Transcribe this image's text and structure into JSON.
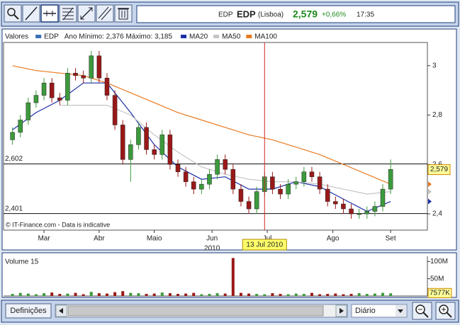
{
  "quote": {
    "symbol": "EDP",
    "name": "EDP",
    "exchange": "(Lisboa)",
    "price": "2,579",
    "change": "+0,66%",
    "time": "17:35"
  },
  "controls": {
    "settings_button": "Definições",
    "interval": "Diário"
  },
  "chart_data": [
    {
      "type": "candlestick",
      "legend_title": "Valores",
      "range_text": "Ano Mínimo: 2,376 Máximo: 3,185",
      "x": [
        1,
        4,
        7,
        10,
        13,
        16,
        19,
        22,
        25,
        28,
        31,
        34,
        37,
        40,
        43,
        46,
        49,
        52,
        55,
        58,
        61,
        64,
        67,
        70,
        73,
        76,
        79,
        82,
        85,
        88,
        91,
        94,
        97,
        100,
        103,
        106,
        109,
        112,
        115,
        118,
        121,
        124,
        127,
        130,
        133,
        136,
        139,
        142,
        145
      ],
      "series": [
        {
          "name": "EDP",
          "color": "#3a6fb5",
          "up_color": "#3c9a3c",
          "down_color": "#9a1818",
          "open": [
            2.7,
            2.73,
            2.78,
            2.85,
            2.88,
            2.93,
            2.87,
            2.86,
            2.97,
            2.96,
            2.95,
            3.04,
            2.95,
            2.88,
            2.76,
            2.62,
            2.68,
            2.75,
            2.66,
            2.64,
            2.72,
            2.6,
            2.57,
            2.53,
            2.5,
            2.52,
            2.56,
            2.62,
            2.58,
            2.5,
            2.45,
            2.42,
            2.49,
            2.55,
            2.5,
            2.48,
            2.52,
            2.53,
            2.57,
            2.55,
            2.5,
            2.45,
            2.44,
            2.42,
            2.4,
            2.4,
            2.41,
            2.43,
            2.5
          ],
          "high": [
            2.75,
            2.8,
            2.87,
            2.9,
            2.95,
            2.95,
            2.89,
            2.99,
            2.99,
            2.98,
            3.06,
            3.06,
            2.97,
            2.9,
            2.78,
            2.7,
            2.77,
            2.77,
            2.68,
            2.74,
            2.74,
            2.62,
            2.59,
            2.55,
            2.54,
            2.58,
            2.64,
            2.64,
            2.6,
            2.52,
            2.47,
            2.51,
            2.57,
            2.57,
            2.52,
            2.54,
            2.55,
            2.59,
            2.59,
            2.57,
            2.52,
            2.47,
            2.46,
            2.44,
            2.42,
            2.43,
            2.45,
            2.52,
            2.62
          ],
          "low": [
            2.68,
            2.71,
            2.76,
            2.83,
            2.86,
            2.85,
            2.84,
            2.84,
            2.94,
            2.93,
            2.93,
            2.93,
            2.86,
            2.74,
            2.6,
            2.53,
            2.66,
            2.64,
            2.62,
            2.62,
            2.58,
            2.55,
            2.51,
            2.48,
            2.48,
            2.5,
            2.54,
            2.56,
            2.48,
            2.43,
            2.4,
            2.4,
            2.47,
            2.48,
            2.46,
            2.46,
            2.5,
            2.51,
            2.53,
            2.48,
            2.43,
            2.42,
            2.4,
            2.38,
            2.38,
            2.38,
            2.39,
            2.41,
            2.48
          ],
          "close": [
            2.73,
            2.78,
            2.85,
            2.88,
            2.93,
            2.87,
            2.86,
            2.97,
            2.96,
            2.95,
            3.04,
            2.95,
            2.88,
            2.76,
            2.62,
            2.68,
            2.75,
            2.66,
            2.64,
            2.72,
            2.6,
            2.57,
            2.53,
            2.5,
            2.52,
            2.56,
            2.62,
            2.58,
            2.5,
            2.45,
            2.42,
            2.49,
            2.55,
            2.5,
            2.48,
            2.52,
            2.53,
            2.57,
            2.55,
            2.5,
            2.45,
            2.44,
            2.42,
            2.4,
            2.4,
            2.41,
            2.43,
            2.5,
            2.58
          ]
        }
      ],
      "ma_x": [
        1,
        10,
        19,
        28,
        37,
        46,
        55,
        64,
        73,
        82,
        91,
        100,
        109,
        118,
        127,
        136,
        145
      ],
      "lines": [
        {
          "name": "MA20",
          "color": "#1c2fa8",
          "values": [
            2.74,
            2.81,
            2.86,
            2.93,
            2.93,
            2.81,
            2.68,
            2.59,
            2.54,
            2.55,
            2.5,
            2.5,
            2.53,
            2.51,
            2.46,
            2.41,
            2.45
          ]
        },
        {
          "name": "MA50",
          "color": "#c4c4c4",
          "values": [
            null,
            null,
            2.84,
            2.84,
            2.84,
            2.8,
            2.72,
            2.65,
            2.59,
            2.56,
            2.54,
            2.53,
            2.53,
            2.52,
            2.5,
            2.48,
            2.49
          ]
        },
        {
          "name": "MA100",
          "color": "#e87a22",
          "values": [
            3.0,
            2.98,
            2.97,
            2.96,
            2.93,
            2.89,
            2.85,
            2.81,
            2.78,
            2.75,
            2.72,
            2.7,
            2.67,
            2.64,
            2.6,
            2.56,
            2.52
          ]
        }
      ],
      "xlim": [
        -2.4,
        159
      ],
      "xticks": [
        {
          "value": 13,
          "label": "Mar"
        },
        {
          "value": 34,
          "label": "Abr"
        },
        {
          "value": 55,
          "label": "Maio"
        },
        {
          "value": 77,
          "label": "Jun"
        },
        {
          "value": 98,
          "label": "Jul"
        },
        {
          "value": 123,
          "label": "Ago"
        },
        {
          "value": 145,
          "label": "Set"
        }
      ],
      "year_label": "2010",
      "ylim": [
        2.334,
        3.094
      ],
      "yticks": [
        {
          "value": 2.4,
          "label": "2,4"
        },
        {
          "value": 2.6,
          "label": "2,6"
        },
        {
          "value": 2.8,
          "label": "2,8"
        },
        3
      ],
      "reference_lines": [
        {
          "value": 2.602,
          "label": "2,602"
        },
        {
          "value": 2.401,
          "label": "2,401"
        }
      ],
      "last_price": {
        "value": 2.579,
        "label": "2,579"
      },
      "crosshair": {
        "x": 97,
        "label": "13 Jul 2010"
      },
      "note": "© IT-Finance.com - Data is indicative"
    },
    {
      "type": "bar",
      "title": "Volume 15",
      "x": [
        1,
        4,
        7,
        10,
        13,
        16,
        19,
        22,
        25,
        28,
        31,
        34,
        37,
        40,
        43,
        46,
        49,
        52,
        55,
        58,
        61,
        64,
        67,
        70,
        73,
        76,
        79,
        82,
        85,
        88,
        91,
        94,
        97,
        100,
        103,
        106,
        109,
        112,
        115,
        118,
        121,
        124,
        127,
        130,
        133,
        136,
        139,
        142,
        145
      ],
      "values": [
        6000000,
        9000000,
        7000000,
        5000000,
        8000000,
        10000000,
        6000000,
        7000000,
        9000000,
        5000000,
        12000000,
        8000000,
        7000000,
        11000000,
        14000000,
        9000000,
        8000000,
        6000000,
        7000000,
        10000000,
        8000000,
        6000000,
        7000000,
        9000000,
        5000000,
        6000000,
        8000000,
        7000000,
        110000000,
        9000000,
        7000000,
        6000000,
        5000000,
        8000000,
        6000000,
        5000000,
        7000000,
        6000000,
        9000000,
        5000000,
        6000000,
        7000000,
        5000000,
        6000000,
        8000000,
        6000000,
        7000000,
        9000000,
        7577000
      ],
      "ylim": [
        0,
        115000000
      ],
      "yticks": [
        {
          "value": 100000000,
          "label": "100M"
        },
        {
          "value": 50000000,
          "label": "50M"
        }
      ],
      "last_value": {
        "value": 7577000,
        "label": "7577K"
      }
    }
  ]
}
